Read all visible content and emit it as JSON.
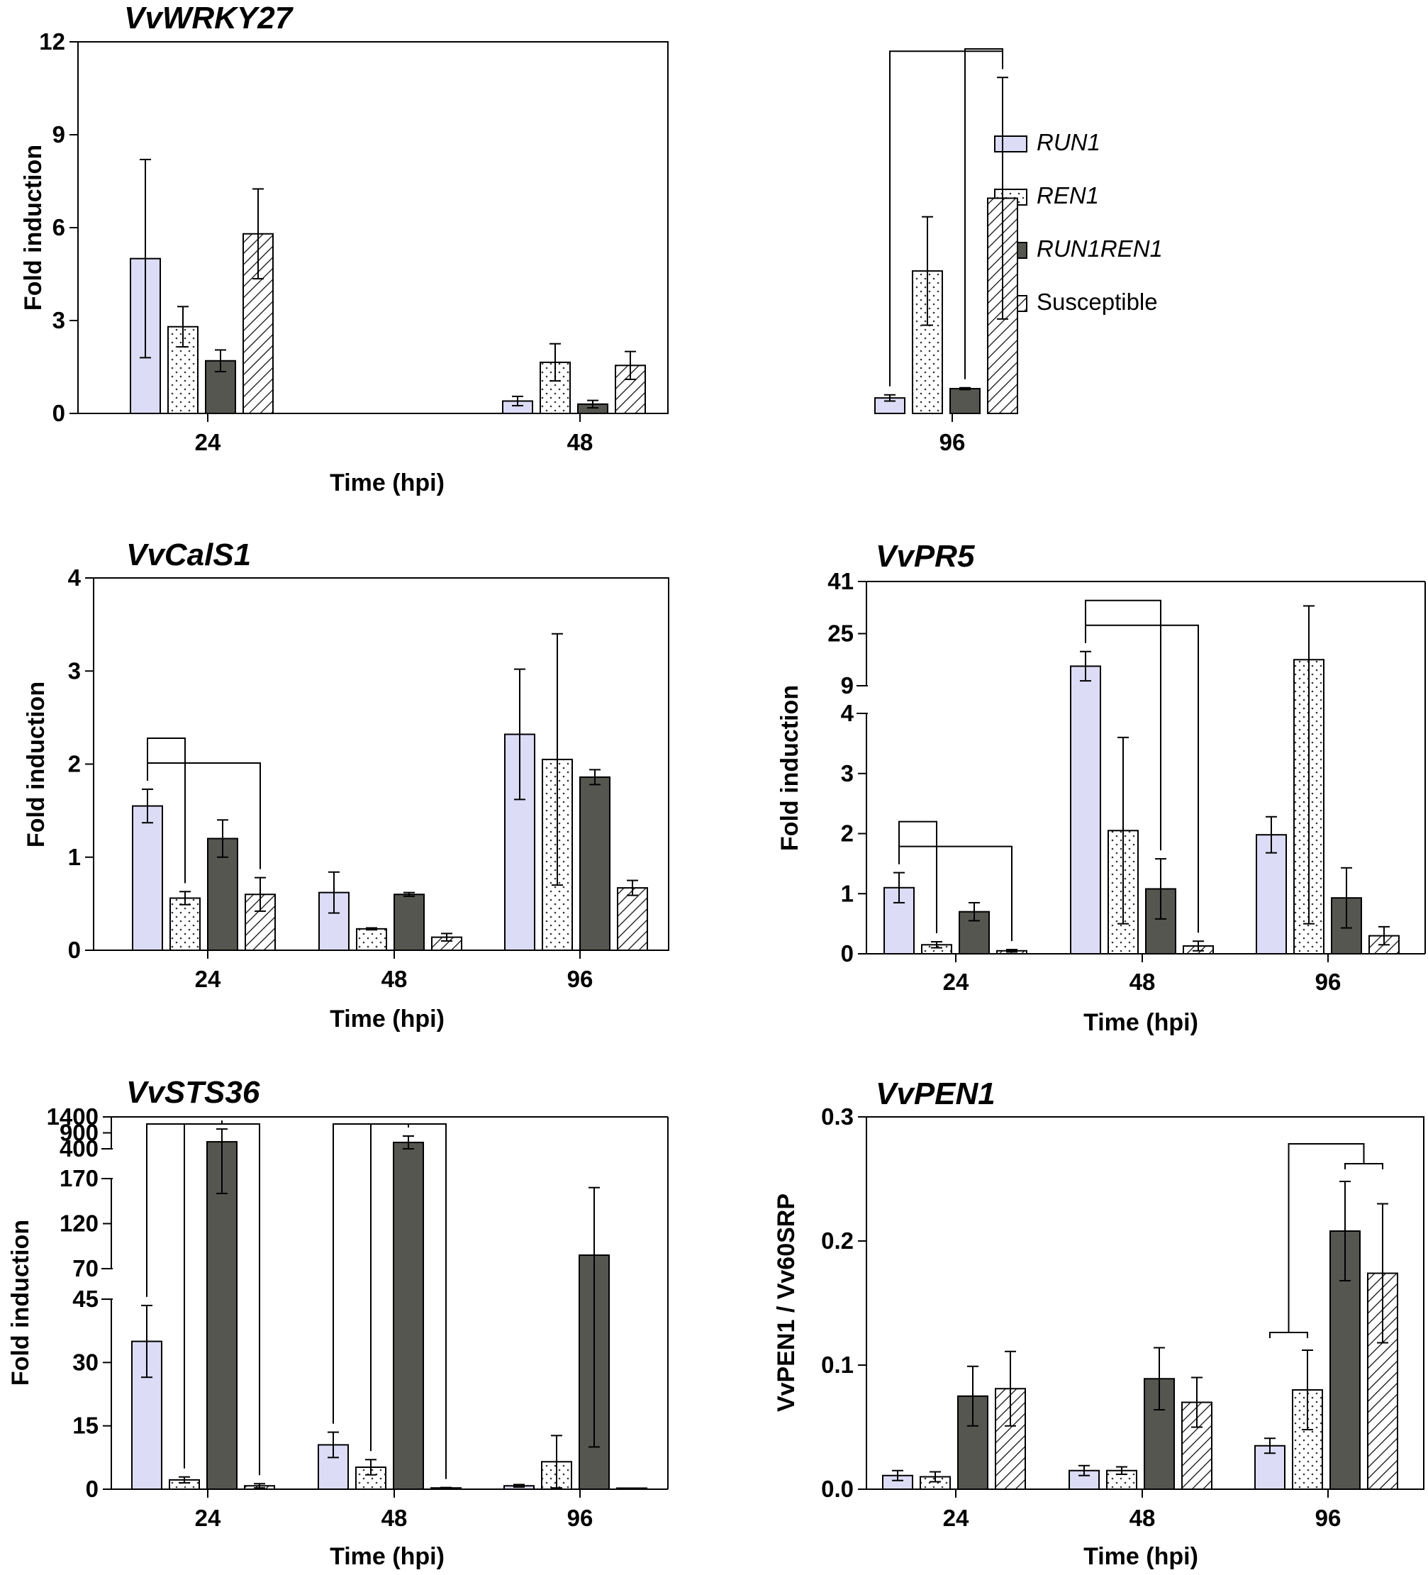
{
  "legend": [
    {
      "key": "RUN1",
      "label": "RUN1",
      "italic": true
    },
    {
      "key": "REN1",
      "label": "REN1",
      "italic": true
    },
    {
      "key": "RUN1REN1",
      "label": "RUN1REN1",
      "italic": true
    },
    {
      "key": "Susceptible",
      "label": "Susceptible",
      "italic": false
    }
  ],
  "colors": {
    "RUN1": "#dcdcf6",
    "REN1": "#ffffff",
    "RUN1REN1": "#54564f",
    "Susceptible": "#ffffff",
    "stroke": "#000000"
  },
  "chart_data": [
    {
      "id": "vvwrky27",
      "type": "bar",
      "title": "VvWRKY27",
      "xlabel": "Time (hpi)",
      "ylabel": "Fold induction",
      "categories": [
        "24",
        "48",
        "96"
      ],
      "yticks": [
        "0",
        "3",
        "6",
        "9",
        "12"
      ],
      "ylim": [
        0,
        12
      ],
      "series": [
        {
          "name": "RUN1",
          "values": [
            5.0,
            0.4,
            0.5
          ],
          "errors": [
            3.2,
            0.15,
            0.1
          ]
        },
        {
          "name": "REN1",
          "values": [
            2.8,
            1.65,
            4.6
          ],
          "errors": [
            0.65,
            0.6,
            1.75
          ]
        },
        {
          "name": "RUN1REN1",
          "values": [
            1.7,
            0.3,
            0.8
          ],
          "errors": [
            0.35,
            0.12,
            0.03
          ]
        },
        {
          "name": "Susceptible",
          "values": [
            5.8,
            1.55,
            6.95
          ],
          "errors": [
            1.45,
            0.45,
            3.9
          ]
        }
      ],
      "significance": [
        {
          "group": 2,
          "from": 0,
          "to": 3
        },
        {
          "group": 2,
          "from": 2,
          "to": 3
        }
      ]
    },
    {
      "id": "vvcals1",
      "type": "bar",
      "title": "VvCalS1",
      "xlabel": "Time (hpi)",
      "ylabel": "Fold induction",
      "categories": [
        "24",
        "48",
        "96"
      ],
      "yticks": [
        "0",
        "1",
        "2",
        "3",
        "4"
      ],
      "ylim": [
        0,
        4
      ],
      "series": [
        {
          "name": "RUN1",
          "values": [
            1.55,
            0.62,
            2.32
          ],
          "errors": [
            0.18,
            0.22,
            0.7
          ]
        },
        {
          "name": "REN1",
          "values": [
            0.56,
            0.23,
            2.05
          ],
          "errors": [
            0.07,
            0.01,
            1.35
          ]
        },
        {
          "name": "RUN1REN1",
          "values": [
            1.2,
            0.6,
            1.86
          ],
          "errors": [
            0.2,
            0.02,
            0.08
          ]
        },
        {
          "name": "Susceptible",
          "values": [
            0.6,
            0.14,
            0.67
          ],
          "errors": [
            0.18,
            0.04,
            0.08
          ]
        }
      ],
      "significance": [
        {
          "group": 0,
          "from": 0,
          "to": 3
        },
        {
          "group": 0,
          "from": 0,
          "to": 1
        }
      ]
    },
    {
      "id": "vvpr5",
      "type": "bar",
      "title": "VvPR5",
      "xlabel": "Time (hpi)",
      "ylabel": "Fold induction",
      "categories": [
        "24",
        "48",
        "96"
      ],
      "yticks": [
        "0",
        "1",
        "2",
        "3",
        "4",
        "9",
        "25",
        "41"
      ],
      "axis_break": {
        "lower": [
          0,
          4
        ],
        "upper": [
          9,
          41
        ]
      },
      "series": [
        {
          "name": "RUN1",
          "values": [
            1.1,
            15.0,
            1.98
          ],
          "errors": [
            0.25,
            4.5,
            0.3
          ]
        },
        {
          "name": "REN1",
          "values": [
            0.15,
            2.05,
            17.0
          ],
          "errors": [
            0.05,
            1.55,
            16.5
          ]
        },
        {
          "name": "RUN1REN1",
          "values": [
            0.7,
            1.08,
            0.93
          ],
          "errors": [
            0.15,
            0.5,
            0.5
          ]
        },
        {
          "name": "Susceptible",
          "values": [
            0.05,
            0.13,
            0.3
          ],
          "errors": [
            0.02,
            0.08,
            0.15
          ]
        }
      ],
      "significance": [
        {
          "group": 0,
          "from": 0,
          "to": 3
        },
        {
          "group": 0,
          "from": 0,
          "to": 1
        },
        {
          "group": 1,
          "from": 0,
          "to": 3
        },
        {
          "group": 1,
          "from": 0,
          "to": 2
        }
      ]
    },
    {
      "id": "vvsts36",
      "type": "bar",
      "title": "VvSTS36",
      "xlabel": "Time (hpi)",
      "ylabel": "Fold induction",
      "categories": [
        "24",
        "48",
        "96"
      ],
      "yticks": [
        "0",
        "15",
        "30",
        "45",
        "70",
        "120",
        "170",
        "400",
        "900",
        "1400"
      ],
      "axis_break": {
        "lower": [
          0,
          45
        ],
        "middle": [
          70,
          170
        ],
        "upper": [
          400,
          1400
        ]
      },
      "series": [
        {
          "name": "RUN1",
          "values": [
            35,
            10.5,
            0.8
          ],
          "errors": [
            8.5,
            3,
            0.3
          ]
        },
        {
          "name": "REN1",
          "values": [
            2.2,
            5.2,
            6.5
          ],
          "errors": [
            0.7,
            1.8,
            6.2
          ]
        },
        {
          "name": "RUN1REN1",
          "values": [
            620,
            600,
            85
          ],
          "errors": [
            400,
            200,
            75
          ]
        },
        {
          "name": "Susceptible",
          "values": [
            0.8,
            0.3,
            0.2
          ],
          "errors": [
            0.5,
            0.1,
            0.05
          ]
        }
      ],
      "significance": [
        {
          "group": 0,
          "from": 0,
          "to": 2
        },
        {
          "group": 0,
          "from": 1,
          "to": 2
        },
        {
          "group": 0,
          "from": 2,
          "to": 3
        },
        {
          "group": 1,
          "from": 0,
          "to": 2
        },
        {
          "group": 1,
          "from": 1,
          "to": 2
        },
        {
          "group": 1,
          "from": 2,
          "to": 3
        }
      ]
    },
    {
      "id": "vvpen1",
      "type": "bar",
      "title": "VvPEN1",
      "xlabel": "Time (hpi)",
      "ylabel": "VvPEN1 / Vv60SRP",
      "categories": [
        "24",
        "48",
        "96"
      ],
      "yticks": [
        "0.0",
        "0.1",
        "0.2",
        "0.3"
      ],
      "ylim": [
        0,
        0.3
      ],
      "series": [
        {
          "name": "RUN1",
          "values": [
            0.011,
            0.015,
            0.035
          ],
          "errors": [
            0.004,
            0.004,
            0.006
          ]
        },
        {
          "name": "REN1",
          "values": [
            0.01,
            0.015,
            0.08
          ],
          "errors": [
            0.004,
            0.003,
            0.032
          ]
        },
        {
          "name": "RUN1REN1",
          "values": [
            0.075,
            0.089,
            0.208
          ],
          "errors": [
            0.024,
            0.025,
            0.04
          ]
        },
        {
          "name": "Susceptible",
          "values": [
            0.081,
            0.07,
            0.174
          ],
          "errors": [
            0.03,
            0.02,
            0.056
          ]
        }
      ],
      "significance": [
        {
          "group": 2,
          "type": "group_bracket",
          "left": [
            0,
            1
          ],
          "right": [
            2,
            3
          ]
        }
      ]
    }
  ]
}
